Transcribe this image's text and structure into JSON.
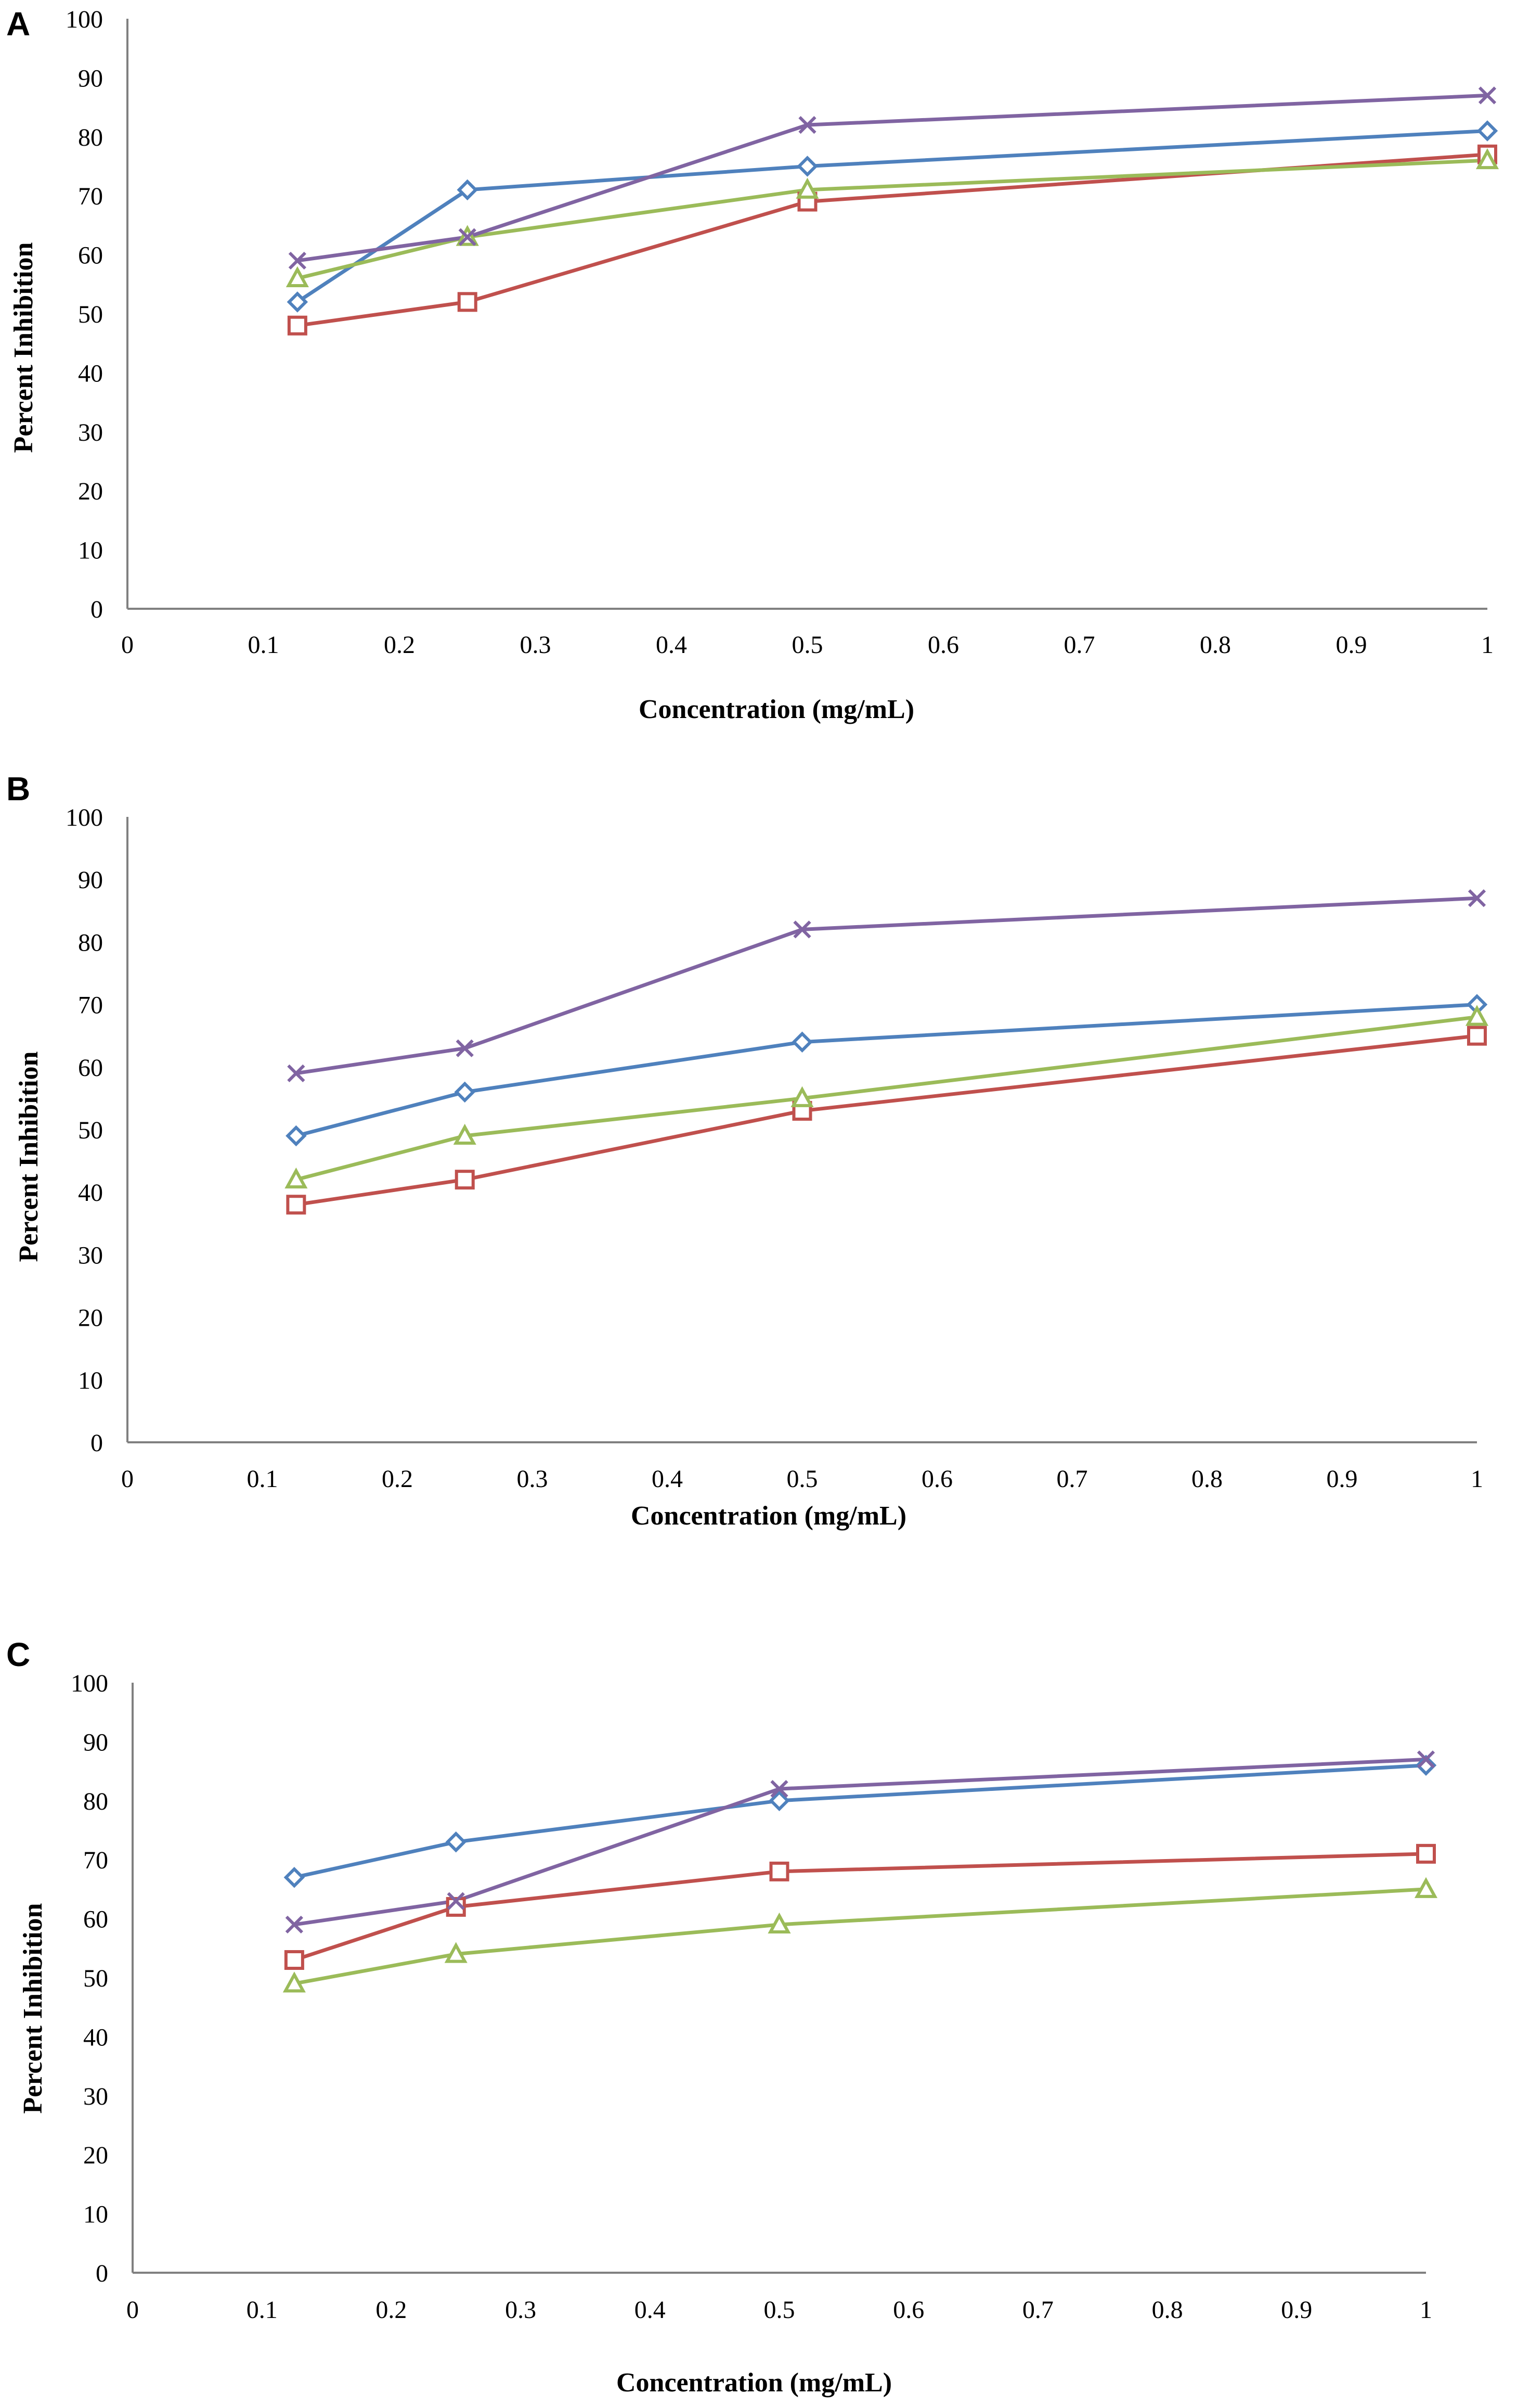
{
  "chart_data": [
    {
      "panel": "A",
      "type": "line",
      "xlabel": "Concentration (mg/mL)",
      "ylabel": "Percent Inhibition",
      "xlim": [
        0,
        1
      ],
      "ylim": [
        0,
        100
      ],
      "x_ticks": [
        "0",
        "0.1",
        "0.2",
        "0.3",
        "0.4",
        "0.5",
        "0.6",
        "0.7",
        "0.8",
        "0.9",
        "1"
      ],
      "y_ticks": [
        "0",
        "10",
        "20",
        "30",
        "40",
        "50",
        "60",
        "70",
        "80",
        "90",
        "100"
      ],
      "x": [
        0.125,
        0.25,
        0.5,
        1
      ],
      "series": [
        {
          "marker": "diamond",
          "color": "#4F81BD",
          "values": [
            52,
            71,
            75,
            81
          ]
        },
        {
          "marker": "square",
          "color": "#C0504D",
          "values": [
            48,
            52,
            69,
            77
          ]
        },
        {
          "marker": "triangle",
          "color": "#9BBB59",
          "values": [
            56,
            63,
            71,
            76
          ]
        },
        {
          "marker": "x",
          "color": "#8064A2",
          "values": [
            59,
            63,
            82,
            87
          ]
        }
      ]
    },
    {
      "panel": "B",
      "type": "line",
      "xlabel": "Concentration (mg/mL)",
      "ylabel": "Percent Inhibition",
      "xlim": [
        0,
        1
      ],
      "ylim": [
        0,
        100
      ],
      "x_ticks": [
        "0",
        "0.1",
        "0.2",
        "0.3",
        "0.4",
        "0.5",
        "0.6",
        "0.7",
        "0.8",
        "0.9",
        "1"
      ],
      "y_ticks": [
        "0",
        "10",
        "20",
        "30",
        "40",
        "50",
        "60",
        "70",
        "80",
        "90",
        "100"
      ],
      "x": [
        0.125,
        0.25,
        0.5,
        1
      ],
      "series": [
        {
          "marker": "diamond",
          "color": "#4F81BD",
          "values": [
            49,
            56,
            64,
            70
          ]
        },
        {
          "marker": "square",
          "color": "#C0504D",
          "values": [
            38,
            42,
            53,
            65
          ]
        },
        {
          "marker": "triangle",
          "color": "#9BBB59",
          "values": [
            42,
            49,
            55,
            68
          ]
        },
        {
          "marker": "x",
          "color": "#8064A2",
          "values": [
            59,
            63,
            82,
            87
          ]
        }
      ]
    },
    {
      "panel": "C",
      "type": "line",
      "xlabel": "Concentration (mg/mL)",
      "ylabel": "Percent Inhibition",
      "xlim": [
        0,
        1
      ],
      "ylim": [
        0,
        100
      ],
      "x_ticks": [
        "0",
        "0.1",
        "0.2",
        "0.3",
        "0.4",
        "0.5",
        "0.6",
        "0.7",
        "0.8",
        "0.9",
        "1"
      ],
      "y_ticks": [
        "0",
        "10",
        "20",
        "30",
        "40",
        "50",
        "60",
        "70",
        "80",
        "90",
        "100"
      ],
      "x": [
        0.125,
        0.25,
        0.5,
        1
      ],
      "series": [
        {
          "marker": "diamond",
          "color": "#4F81BD",
          "values": [
            67,
            73,
            80,
            86
          ]
        },
        {
          "marker": "square",
          "color": "#C0504D",
          "values": [
            53,
            62,
            68,
            71
          ]
        },
        {
          "marker": "triangle",
          "color": "#9BBB59",
          "values": [
            49,
            54,
            59,
            65
          ]
        },
        {
          "marker": "x",
          "color": "#8064A2",
          "values": [
            59,
            63,
            82,
            87
          ]
        }
      ]
    }
  ]
}
